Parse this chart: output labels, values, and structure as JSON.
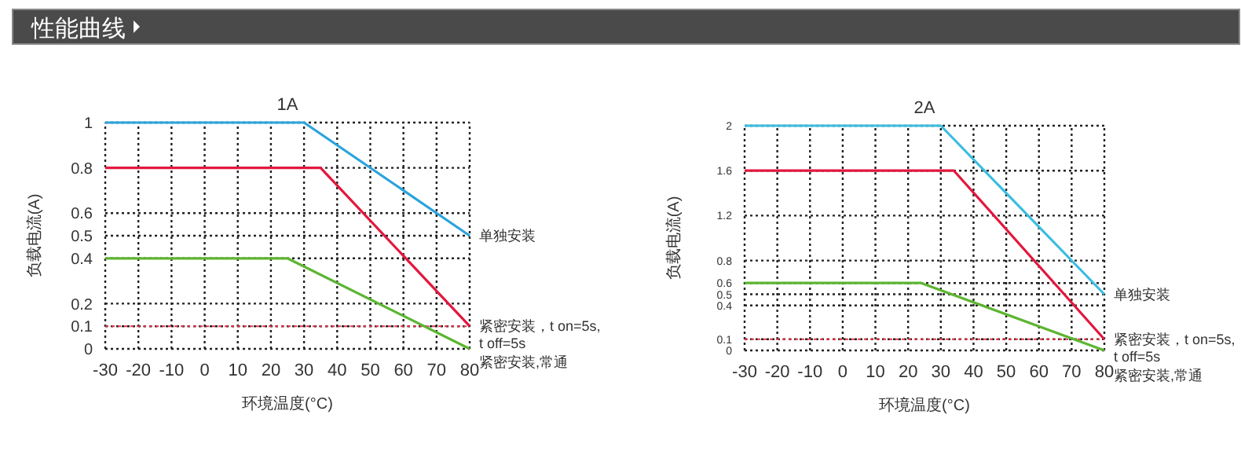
{
  "chart_data": [
    {
      "type": "line",
      "title": "1A",
      "xlabel": "环境温度(°C)",
      "ylabel": "负载电流(A)",
      "annotations": [
        "性能曲线"
      ],
      "xlim": [
        -30,
        80
      ],
      "xticks": [
        -30,
        -20,
        -10,
        0,
        10,
        20,
        30,
        40,
        50,
        60,
        70,
        80
      ],
      "ylim": [
        0,
        1
      ],
      "yticks": [
        0,
        0.1,
        0.2,
        0.4,
        0.5,
        0.6,
        0.8,
        1
      ],
      "grid": true,
      "legend": false,
      "marker": "none",
      "line_style": "solid",
      "ref_lines": [
        {
          "axis": "y",
          "value": 0.1,
          "color": "#e8334a",
          "line_style": "dotted"
        }
      ],
      "series": [
        {
          "name": "单独安装",
          "color": "#2ba3dd",
          "x": [
            -30,
            30,
            80
          ],
          "values": [
            1,
            1,
            0.5
          ]
        },
        {
          "name": "紧密安装，t on=5s, t off=5s",
          "color": "#e3173e",
          "x": [
            -30,
            35,
            80
          ],
          "values": [
            0.8,
            0.8,
            0.1
          ]
        },
        {
          "name": "紧密安装,常通",
          "color": "#5db531",
          "x": [
            -30,
            25,
            80
          ],
          "values": [
            0.4,
            0.4,
            0
          ]
        }
      ]
    },
    {
      "type": "line",
      "title": "2A",
      "xlabel": "环境温度(°C)",
      "ylabel": "负载电流(A)",
      "xlim": [
        -30,
        80
      ],
      "xticks": [
        -30,
        -20,
        -10,
        0,
        10,
        20,
        30,
        40,
        50,
        60,
        70,
        80
      ],
      "ylim": [
        0,
        2
      ],
      "yticks": [
        0,
        0.1,
        0.4,
        0.5,
        0.6,
        0.8,
        1.2,
        1.6,
        2
      ],
      "grid": true,
      "legend": false,
      "marker": "none",
      "line_style": "solid",
      "ref_lines": [
        {
          "axis": "y",
          "value": 0.1,
          "color": "#e8334a",
          "line_style": "dotted"
        }
      ],
      "series": [
        {
          "name": "单独安装",
          "color": "#3bbde0",
          "x": [
            -30,
            30,
            80
          ],
          "values": [
            2,
            2,
            0.5
          ]
        },
        {
          "name": "紧密安装，t on=5s, t off=5s",
          "color": "#e3173e",
          "x": [
            -30,
            34,
            80
          ],
          "values": [
            1.6,
            1.6,
            0.1
          ]
        },
        {
          "name": "紧密安装,常通",
          "color": "#5db531",
          "x": [
            -30,
            24,
            80
          ],
          "values": [
            0.6,
            0.6,
            0
          ]
        }
      ]
    }
  ]
}
